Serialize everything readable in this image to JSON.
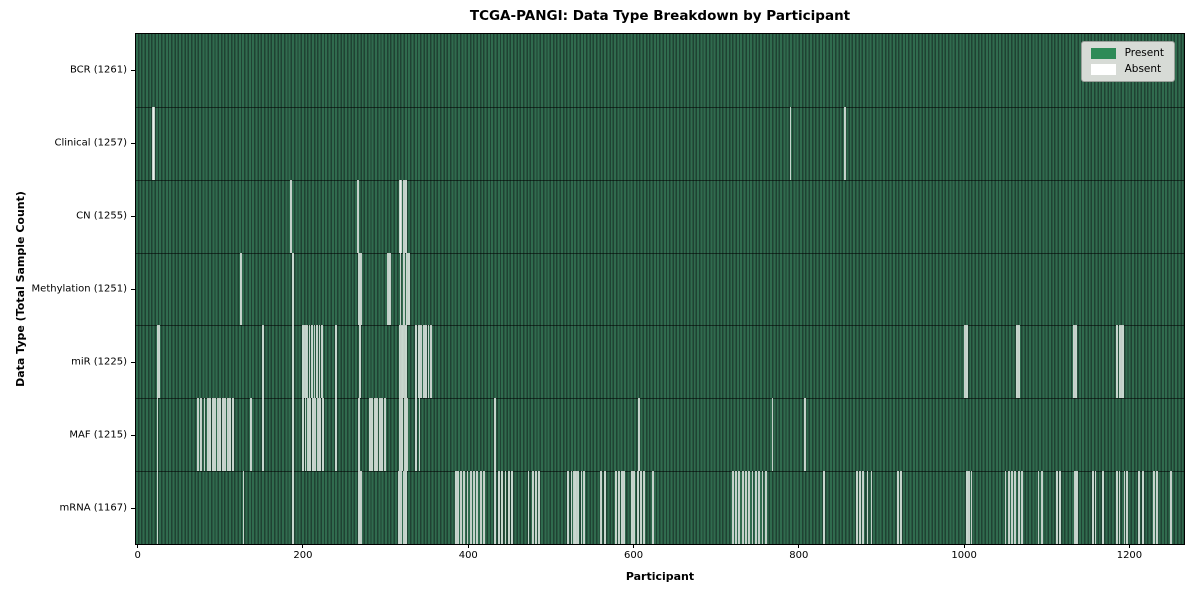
{
  "figure": {
    "title": "TCGA-PANGI: Data Type Breakdown by Participant",
    "xlabel": "Participant",
    "ylabel": "Data Type (Total Sample Count)"
  },
  "legend": {
    "position": "upper right",
    "items": [
      {
        "label": "Present",
        "color": "#2e8b57"
      },
      {
        "label": "Absent",
        "color": "#ffffff"
      }
    ]
  },
  "chart_data": {
    "type": "heatmap",
    "title": "TCGA-PANGI: Data Type Breakdown by Participant",
    "xlabel": "Participant",
    "ylabel": "Data Type (Total Sample Count)",
    "legend_entries": [
      "Present",
      "Absent"
    ],
    "legend_position": "upper right",
    "present_color": "#2e8b57",
    "absent_color": "#ffffff",
    "bar_edge_color": "#1f4233",
    "grid": false,
    "n_participants": 1261,
    "xlim": [
      -2,
      1266
    ],
    "x_ticks": [
      0,
      200,
      400,
      600,
      800,
      1000,
      1200
    ],
    "rows": [
      {
        "name": "BCR",
        "label": "BCR (1261)",
        "present_count": 1261,
        "absent_participants": []
      },
      {
        "name": "Clinical",
        "label": "Clinical (1257)",
        "present_count": 1257,
        "absent_participants": [
          19,
          20,
          790,
          856
        ]
      },
      {
        "name": "CN",
        "label": "CN (1255)",
        "present_count": 1255,
        "absent_participants": [
          186,
          267,
          317,
          319,
          322,
          325
        ]
      },
      {
        "name": "Methylation",
        "label": "Methylation (1251)",
        "present_count": 1251,
        "absent_participants": [
          125,
          188,
          268,
          270,
          303,
          305,
          318,
          322,
          326,
          328
        ]
      },
      {
        "name": "miR",
        "label": "miR (1225)",
        "present_count": 1225,
        "absent_participants": [
          24,
          26,
          152,
          188,
          200,
          202,
          205,
          208,
          211,
          214,
          217,
          220,
          223,
          240,
          269,
          317,
          320,
          322,
          325,
          337,
          340,
          343,
          346,
          349,
          352,
          355,
          1001,
          1003,
          1064,
          1066,
          1133,
          1135,
          1185,
          1188,
          1190,
          1192
        ]
      },
      {
        "name": "MAF",
        "label": "MAF (1215)",
        "present_count": 1215,
        "absent_participants": [
          24,
          73,
          77,
          81,
          85,
          88,
          91,
          94,
          97,
          100,
          103,
          106,
          109,
          112,
          115,
          137,
          152,
          188,
          200,
          203,
          206,
          209,
          212,
          215,
          218,
          221,
          224,
          240,
          268,
          281,
          284,
          287,
          290,
          293,
          296,
          299,
          317,
          320,
          323,
          326,
          337,
          341,
          432,
          607,
          768,
          807
        ]
      },
      {
        "name": "mRNA",
        "label": "mRNA (1167)",
        "present_count": 1167,
        "absent_participants": [
          24,
          128,
          188,
          268,
          270,
          316,
          319,
          322,
          325,
          385,
          388,
          391,
          395,
          399,
          403,
          407,
          411,
          415,
          419,
          432,
          437,
          441,
          445,
          449,
          453,
          473,
          478,
          482,
          486,
          521,
          525,
          528,
          530,
          533,
          537,
          540,
          561,
          565,
          579,
          582,
          586,
          588,
          598,
          601,
          605,
          609,
          613,
          624,
          720,
          724,
          728,
          732,
          736,
          740,
          744,
          748,
          752,
          756,
          760,
          830,
          870,
          874,
          878,
          883,
          888,
          920,
          924,
          1003,
          1006,
          1009,
          1050,
          1054,
          1058,
          1062,
          1066,
          1070,
          1090,
          1094,
          1112,
          1116,
          1134,
          1137,
          1156,
          1159,
          1168,
          1185,
          1188,
          1194,
          1197,
          1212,
          1216,
          1230,
          1233,
          1250
        ]
      }
    ]
  }
}
